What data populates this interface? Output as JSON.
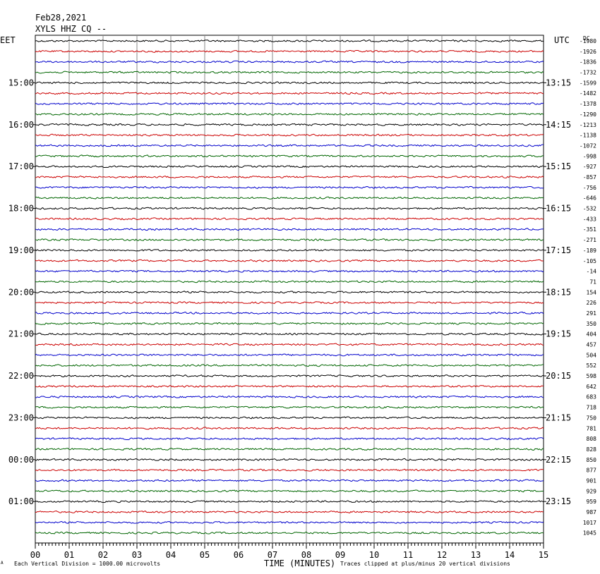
{
  "header": {
    "date": "Feb28,2021",
    "station": "XYLS HHZ CQ --"
  },
  "chart_data": {
    "type": "line",
    "left_zone_label": "EET",
    "right_zone_label": "UTC",
    "dc_label": "DC",
    "left_time_labels": [
      "15:00",
      "16:00",
      "17:00",
      "18:00",
      "19:00",
      "20:00",
      "21:00",
      "22:00",
      "23:00",
      "00:00",
      "01:00"
    ],
    "right_time_labels": [
      "13:15",
      "14:15",
      "15:15",
      "16:15",
      "17:15",
      "18:15",
      "19:15",
      "20:15",
      "21:15",
      "22:15",
      "23:15"
    ],
    "dc_offsets": [
      "-1980",
      "-1926",
      "-1836",
      "-1732",
      "-1599",
      "-1482",
      "-1378",
      "-1290",
      "-1213",
      "-1138",
      "-1072",
      "-998",
      "-927",
      "-857",
      "-756",
      "-646",
      "-532",
      "-433",
      "-351",
      "-271",
      "-189",
      "-105",
      "-14",
      "71",
      "154",
      "226",
      "291",
      "350",
      "404",
      "457",
      "504",
      "552",
      "598",
      "642",
      "683",
      "718",
      "750",
      "781",
      "808",
      "828",
      "850",
      "877",
      "901",
      "929",
      "959",
      "987",
      "1017",
      "1045"
    ],
    "x_ticks": [
      "00",
      "01",
      "02",
      "03",
      "04",
      "05",
      "06",
      "07",
      "08",
      "09",
      "10",
      "11",
      "12",
      "13",
      "14",
      "15"
    ],
    "xlabel": "TIME (MINUTES)",
    "xlim": [
      0,
      15
    ],
    "trace_colors": [
      "#000000",
      "#cc0000",
      "#0000cc",
      "#006600"
    ],
    "grid": true
  },
  "footer": {
    "corner_mark": "A",
    "scale_note": "Each Vertical Division = 1000.00 microvolts",
    "clip_note": "Traces clipped at plus/minus 20 vertical divisions"
  }
}
